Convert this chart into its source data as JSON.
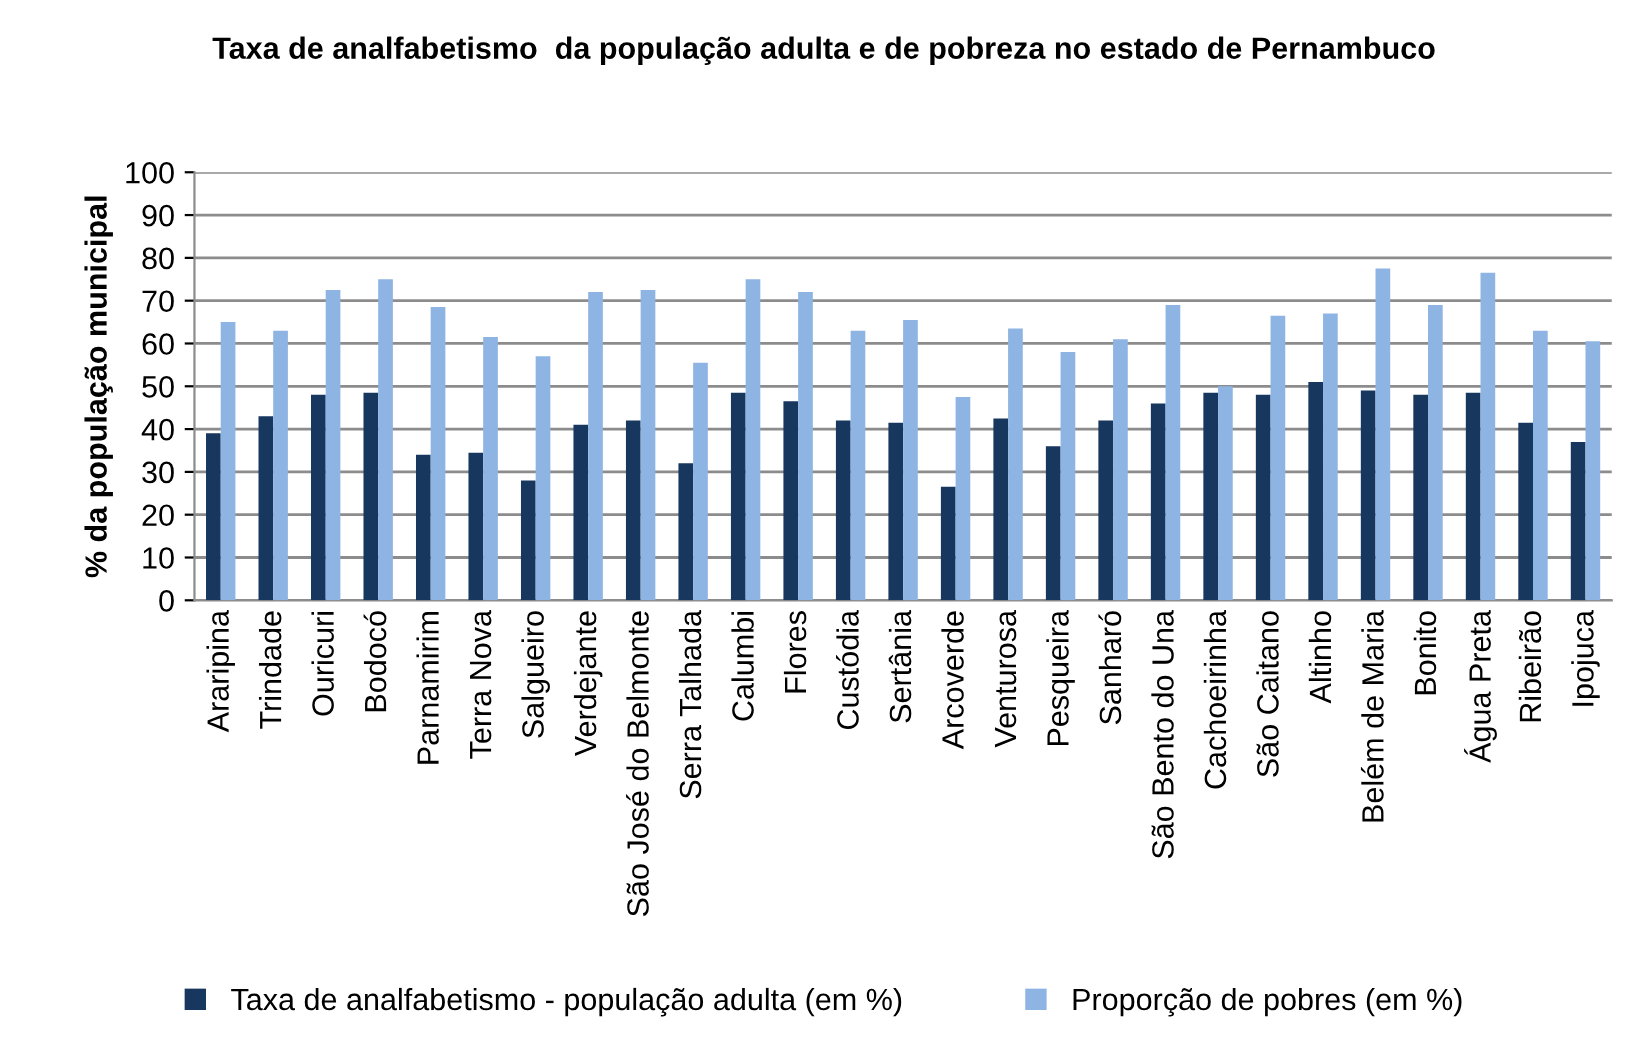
{
  "chart_data": {
    "type": "bar",
    "title": "Taxa de analfabetismo  da população adulta e de pobreza no estado de Pernambuco",
    "ylabel": "% da população municipal",
    "categories": [
      "Araripina",
      "Trindade",
      "Ouricuri",
      "Bodocó",
      "Parnamirim",
      "Terra Nova",
      "Salgueiro",
      "Verdejante",
      "São José do Belmonte",
      "Serra Talhada",
      "Calumbi",
      "Flores",
      "Custódia",
      "Sertânia",
      "Arcoverde",
      "Venturosa",
      "Pesqueira",
      "Sanharó",
      "São Bento do Una",
      "Cachoeirinha",
      "São Caitano",
      "Altinho",
      "Belém de Maria",
      "Bonito",
      "Água Preta",
      "Ribeirão",
      "Ipojuca"
    ],
    "series": [
      {
        "name": "Taxa de analfabetismo - população adulta (em %)",
        "color": "#17375e",
        "values": [
          39,
          43,
          48,
          48.5,
          34,
          34.5,
          28,
          41,
          42,
          32,
          48.5,
          46.5,
          42,
          41.5,
          26.5,
          42.5,
          36,
          42,
          46,
          48.5,
          48,
          51,
          49,
          48,
          48.5,
          41.5,
          37
        ]
      },
      {
        "name": "Proporção de pobres (em %)",
        "color": "#8eb4e3",
        "values": [
          65,
          63,
          72.5,
          75,
          68.5,
          61.5,
          57,
          72,
          72.5,
          55.5,
          75,
          72,
          63,
          65.5,
          47.5,
          63.5,
          58,
          61,
          69,
          50,
          66.5,
          67,
          77.5,
          69,
          76.5,
          63,
          60.5
        ]
      }
    ],
    "ylim": [
      0,
      100
    ],
    "yticks": [
      0,
      10,
      20,
      30,
      40,
      50,
      60,
      70,
      80,
      90,
      100
    ],
    "grid": "y",
    "legend": "bottom"
  }
}
